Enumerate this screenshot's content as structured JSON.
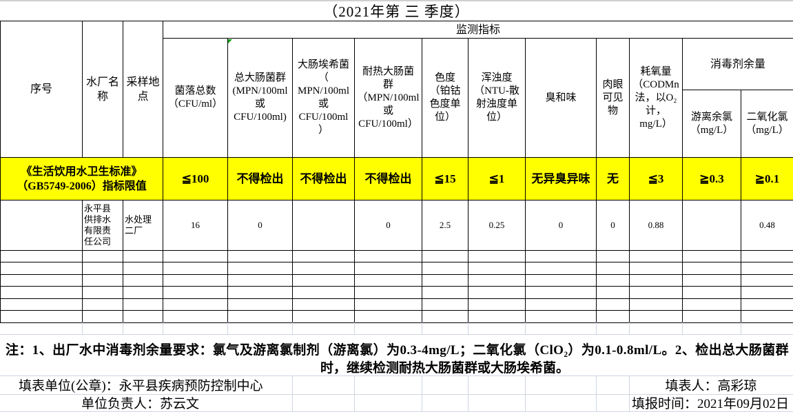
{
  "title": "（2021年第 三 季度）",
  "table": {
    "corner_headers": [
      "序号",
      "水厂名\n称",
      "采样地\n点"
    ],
    "group_header": "监测指标",
    "indicator_headers": [
      "菌落总数\n（CFU/ml）",
      "总大肠菌群\n(MPN/100ml\n或\nCFU/100ml)",
      "大肠埃希菌\n（\nMPN/100ml\n或\nCFU/100ml\n）",
      "耐热大肠菌\n群\n（MPN/100ml\n或\nCFU/100ml）",
      "色度\n（铂钴\n色度单\n位）",
      "浑浊度\n（NTU-散\n射浊度单\n位）",
      "臭和味",
      "肉眼\n可见\n物",
      "耗氧量\n（CODMn\n法，以O₂\n计，\nmg/L）"
    ],
    "disinfectant_group_header": "消毒剂余量",
    "disinfectant_sub_headers": [
      "游离余氯\n（mg/L）",
      "二氧化氯\n（mg/L）"
    ],
    "limit_row": {
      "label": "《生活饮用水卫生标准》\n（GB5749-2006）指标限值",
      "values": [
        "≦100",
        "不得检出",
        "不得检出",
        "不得检出",
        "≦15",
        "≦1",
        "无异臭异味",
        "无",
        "≦3",
        "≧0.3",
        "≧0.1"
      ]
    },
    "data_row": {
      "serial": "",
      "plant_name": "永平县\n供排水\n有限责\n任公司",
      "sampling_site": "水处理\n二厂",
      "values": [
        "16",
        "0",
        "",
        "0",
        "2.5",
        "0.25",
        "0",
        "0",
        "0.88",
        "",
        "0.48"
      ]
    }
  },
  "note": {
    "line1": "注：1、出厂水中消毒剂余量要求：氯气及游离氯制剂（游离氯）为0.3-4mg/L；二氧化氯（ClO₂）为0.1-0.8ml/L。2、检出总大肠菌群",
    "line2": "时，继续检测耐热大肠菌群或大肠埃希菌。"
  },
  "footer": {
    "unit": "填表单位(公章)：永平县疾病预防控制中心",
    "preparer": "填表人：高彩琼",
    "responsible": "单位负责人：苏云文",
    "date": "填报时间：2021年09月02日"
  },
  "colors": {
    "highlight": "#ffff00",
    "error_marker": "#00a000",
    "faint_grid": "#cdd4e2",
    "table_border": "#000000"
  }
}
